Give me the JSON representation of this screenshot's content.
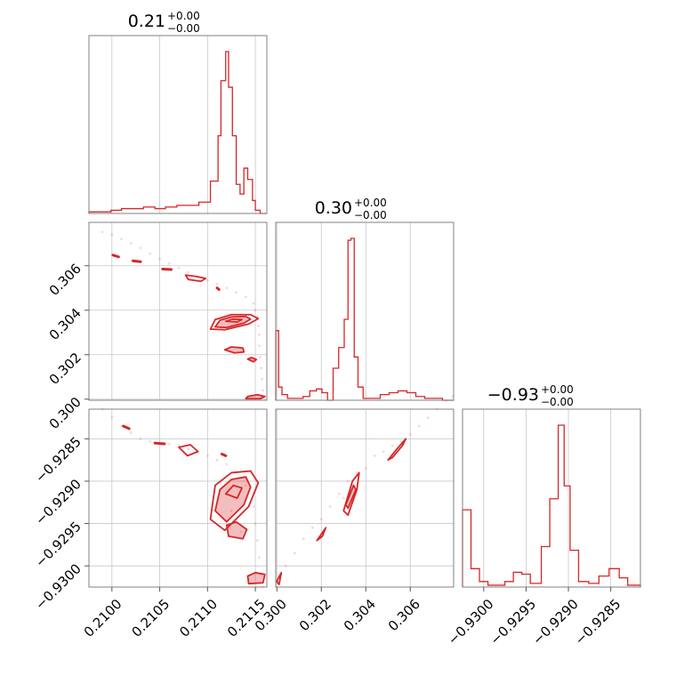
{
  "chart_data": {
    "type": "corner",
    "color": "#d62728",
    "grid": true,
    "parameters": [
      {
        "title": "0.21",
        "title_plus": "+0.00",
        "title_minus": "−0.00",
        "range": [
          0.20976,
          0.21162
        ],
        "ticks": [
          0.21,
          0.2105,
          0.211,
          0.2115
        ],
        "tick_labels": [
          "0.2100",
          "0.2105",
          "0.2110",
          "0.2115"
        ]
      },
      {
        "title": "0.30",
        "title_plus": "+0.00",
        "title_minus": "−0.00",
        "range": [
          0.29995,
          0.30795
        ],
        "ticks": [
          0.3,
          0.302,
          0.304,
          0.306
        ],
        "tick_labels": [
          "0.300",
          "0.302",
          "0.304",
          "0.306"
        ]
      },
      {
        "title": "−0.93",
        "title_plus": "+0.00",
        "title_minus": "−0.00",
        "range": [
          -0.93025,
          -0.92815
        ],
        "ticks": [
          -0.93,
          -0.9295,
          -0.929,
          -0.9285
        ],
        "tick_labels": [
          "−0.9300",
          "−0.9295",
          "−0.9290",
          "−0.9285"
        ]
      }
    ],
    "histograms": [
      {
        "param": 0,
        "edges": [
          0.20976,
          0.20987,
          0.20999,
          0.2101,
          0.21022,
          0.21033,
          0.21045,
          0.21056,
          0.21068,
          0.2108,
          0.21091,
          0.21103,
          0.21111,
          0.21114,
          0.21119,
          0.21122,
          0.21126,
          0.2113,
          0.21134,
          0.21138,
          0.21142,
          0.21147,
          0.2115,
          0.21155,
          0.21162
        ],
        "counts": [
          0.01,
          0.01,
          0.02,
          0.03,
          0.03,
          0.04,
          0.03,
          0.04,
          0.05,
          0.05,
          0.07,
          0.2,
          0.48,
          0.82,
          1.0,
          0.78,
          0.48,
          0.18,
          0.12,
          0.28,
          0.21,
          0.08,
          0.02,
          0.0
        ]
      },
      {
        "param": 1,
        "edges": [
          0.29995,
          0.30008,
          0.30023,
          0.30048,
          0.30088,
          0.30118,
          0.30148,
          0.30178,
          0.30203,
          0.30228,
          0.30253,
          0.30278,
          0.30303,
          0.3032,
          0.30333,
          0.30348,
          0.30365,
          0.30388,
          0.30425,
          0.30465,
          0.30505,
          0.30545,
          0.30585,
          0.30625,
          0.30665,
          0.30705,
          0.30745,
          0.30795
        ],
        "counts": [
          0.37,
          0.07,
          0.03,
          0.01,
          0.01,
          0.02,
          0.05,
          0.06,
          0.04,
          0.0,
          0.17,
          0.28,
          0.43,
          0.85,
          0.86,
          0.23,
          0.07,
          0.01,
          0.01,
          0.03,
          0.04,
          0.05,
          0.04,
          0.02,
          0.01,
          0.01,
          0.0
        ]
      },
      {
        "param": 2,
        "edges": [
          -0.93025,
          -0.93015,
          -0.93005,
          -0.92995,
          -0.92985,
          -0.92975,
          -0.92965,
          -0.92955,
          -0.92945,
          -0.92932,
          -0.92922,
          -0.92912,
          -0.92905,
          -0.92898,
          -0.92888,
          -0.92876,
          -0.92864,
          -0.92852,
          -0.9284,
          -0.9283,
          -0.92815
        ],
        "counts": [
          0.42,
          0.1,
          0.03,
          0.01,
          0.01,
          0.03,
          0.08,
          0.07,
          0.02,
          0.22,
          0.48,
          0.88,
          0.55,
          0.2,
          0.03,
          0.02,
          0.06,
          0.1,
          0.05,
          0.01
        ]
      }
    ],
    "points_note": "",
    "scatter": [
      {
        "x": 0,
        "y": 1,
        "points": [
          [
            0.2099,
            0.30752
          ],
          [
            0.21,
            0.3074
          ],
          [
            0.2101,
            0.3072
          ],
          [
            0.2102,
            0.307
          ],
          [
            0.2103,
            0.3068
          ],
          [
            0.2104,
            0.30655
          ],
          [
            0.2105,
            0.3063
          ],
          [
            0.2106,
            0.3061
          ],
          [
            0.2107,
            0.3059
          ],
          [
            0.2108,
            0.3057
          ],
          [
            0.2109,
            0.3055
          ],
          [
            0.211,
            0.30535
          ],
          [
            0.2111,
            0.30518
          ],
          [
            0.2112,
            0.305
          ],
          [
            0.2113,
            0.3048
          ],
          [
            0.2114,
            0.3046
          ],
          [
            0.21148,
            0.3043
          ],
          [
            0.2115,
            0.304
          ],
          [
            0.21152,
            0.3037
          ],
          [
            0.21153,
            0.3033
          ],
          [
            0.21154,
            0.3029
          ],
          [
            0.21154,
            0.3024
          ],
          [
            0.21155,
            0.3019
          ],
          [
            0.21156,
            0.3014
          ],
          [
            0.21157,
            0.3009
          ],
          [
            0.21158,
            0.3004
          ],
          [
            0.21125,
            0.3033
          ],
          [
            0.21135,
            0.3038
          ],
          [
            0.21115,
            0.3032
          ]
        ]
      },
      {
        "x": 0,
        "y": 2,
        "points": [
          [
            0.2099,
            -0.92815
          ],
          [
            0.21,
            -0.92825
          ],
          [
            0.2101,
            -0.92835
          ],
          [
            0.2102,
            -0.92843
          ],
          [
            0.2103,
            -0.9285
          ],
          [
            0.2104,
            -0.92853
          ],
          [
            0.2105,
            -0.92855
          ],
          [
            0.2106,
            -0.92856
          ],
          [
            0.2107,
            -0.92858
          ],
          [
            0.2108,
            -0.92862
          ],
          [
            0.2109,
            -0.92866
          ],
          [
            0.211,
            -0.9287
          ],
          [
            0.2111,
            -0.92875
          ],
          [
            0.2112,
            -0.9288
          ],
          [
            0.2113,
            -0.9289
          ],
          [
            0.2114,
            -0.92905
          ],
          [
            0.21148,
            -0.9293
          ],
          [
            0.2115,
            -0.9295
          ],
          [
            0.21152,
            -0.9297
          ],
          [
            0.21154,
            -0.9299
          ],
          [
            0.21156,
            -0.9301
          ],
          [
            0.21158,
            -0.93025
          ],
          [
            0.21125,
            -0.92935
          ],
          [
            0.21135,
            -0.9296
          ]
        ]
      },
      {
        "x": 1,
        "y": 2,
        "points": [
          [
            0.3,
            -0.9302
          ],
          [
            0.3004,
            -0.93
          ],
          [
            0.3008,
            -0.92985
          ],
          [
            0.3012,
            -0.92968
          ],
          [
            0.3016,
            -0.92955
          ],
          [
            0.302,
            -0.92945
          ],
          [
            0.3024,
            -0.9293
          ],
          [
            0.3028,
            -0.92915
          ],
          [
            0.3032,
            -0.929
          ],
          [
            0.3036,
            -0.9289
          ],
          [
            0.304,
            -0.92885
          ],
          [
            0.3044,
            -0.9287
          ],
          [
            0.3048,
            -0.92865
          ],
          [
            0.3052,
            -0.92858
          ],
          [
            0.3056,
            -0.92853
          ],
          [
            0.306,
            -0.92845
          ],
          [
            0.3064,
            -0.92835
          ],
          [
            0.3068,
            -0.92825
          ],
          [
            0.3072,
            -0.92815
          ],
          [
            0.3076,
            -0.92805
          ],
          [
            0.3079,
            -0.928
          ],
          [
            0.303,
            -0.9292
          ],
          [
            0.3034,
            -0.92905
          ]
        ]
      }
    ],
    "contours": [
      {
        "x": 0,
        "y": 1,
        "filled": true,
        "points": [
          [
            0.21108,
            0.30325
          ],
          [
            0.21113,
            0.30355
          ],
          [
            0.21125,
            0.3037
          ],
          [
            0.2114,
            0.30372
          ],
          [
            0.21145,
            0.3036
          ],
          [
            0.21138,
            0.30342
          ],
          [
            0.2112,
            0.30322
          ]
        ]
      },
      {
        "x": 0,
        "y": 1,
        "filled": false,
        "points": [
          [
            0.21103,
            0.30315
          ],
          [
            0.21108,
            0.30358
          ],
          [
            0.21125,
            0.3038
          ],
          [
            0.21145,
            0.3038
          ],
          [
            0.21153,
            0.30362
          ],
          [
            0.21143,
            0.30338
          ],
          [
            0.21118,
            0.30312
          ]
        ]
      },
      {
        "x": 0,
        "y": 1,
        "filled": false,
        "points": [
          [
            0.21119,
            0.3035
          ],
          [
            0.21127,
            0.3036
          ],
          [
            0.21136,
            0.30358
          ],
          [
            0.21131,
            0.30347
          ]
        ]
      },
      {
        "x": 0,
        "y": 1,
        "filled": true,
        "points": [
          [
            0.21118,
            0.30222
          ],
          [
            0.21125,
            0.30235
          ],
          [
            0.21137,
            0.3023
          ],
          [
            0.21138,
            0.30212
          ],
          [
            0.21128,
            0.30208
          ]
        ]
      },
      {
        "x": 0,
        "y": 1,
        "filled": true,
        "points": [
          [
            0.21142,
            0.3018
          ],
          [
            0.21146,
            0.30187
          ],
          [
            0.21151,
            0.30178
          ],
          [
            0.21148,
            0.30168
          ]
        ]
      },
      {
        "x": 0,
        "y": 1,
        "filled": false,
        "points": [
          [
            0.2111,
            0.305
          ],
          [
            0.21112,
            0.30493
          ]
        ]
      },
      {
        "x": 0,
        "y": 1,
        "filled": false,
        "points": [
          [
            0.21077,
            0.30558
          ],
          [
            0.21088,
            0.30552
          ],
          [
            0.21098,
            0.30543
          ],
          [
            0.21093,
            0.3053
          ],
          [
            0.2108,
            0.30538
          ]
        ]
      },
      {
        "x": 0,
        "y": 1,
        "filled": true,
        "points": [
          [
            0.21053,
            0.30585
          ],
          [
            0.21062,
            0.30583
          ]
        ]
      },
      {
        "x": 0,
        "y": 1,
        "filled": true,
        "points": [
          [
            0.21022,
            0.30622
          ],
          [
            0.2103,
            0.30618
          ]
        ]
      },
      {
        "x": 0,
        "y": 1,
        "filled": true,
        "points": [
          [
            0.21001,
            0.30648
          ],
          [
            0.21007,
            0.3064
          ]
        ]
      },
      {
        "x": 0,
        "y": 1,
        "filled": true,
        "points": [
          [
            0.21142,
            0.30012
          ],
          [
            0.21152,
            0.3002
          ],
          [
            0.2116,
            0.30012
          ],
          [
            0.21155,
            0.30002
          ],
          [
            0.2114,
            0.30002
          ]
        ]
      },
      {
        "x": 0,
        "y": 2,
        "filled": true,
        "points": [
          [
            0.21108,
            -0.92935
          ],
          [
            0.21113,
            -0.9291
          ],
          [
            0.21125,
            -0.92898
          ],
          [
            0.2114,
            -0.92895
          ],
          [
            0.21145,
            -0.92907
          ],
          [
            0.21138,
            -0.92928
          ],
          [
            0.2112,
            -0.92948
          ]
        ]
      },
      {
        "x": 0,
        "y": 2,
        "filled": false,
        "points": [
          [
            0.21103,
            -0.92945
          ],
          [
            0.21108,
            -0.92905
          ],
          [
            0.21125,
            -0.9289
          ],
          [
            0.21145,
            -0.92888
          ],
          [
            0.21153,
            -0.92902
          ],
          [
            0.21143,
            -0.9293
          ],
          [
            0.21118,
            -0.92958
          ]
        ]
      },
      {
        "x": 0,
        "y": 2,
        "filled": false,
        "points": [
          [
            0.21119,
            -0.92915
          ],
          [
            0.21127,
            -0.92905
          ],
          [
            0.21136,
            -0.92908
          ],
          [
            0.21131,
            -0.9292
          ]
        ]
      },
      {
        "x": 0,
        "y": 2,
        "filled": true,
        "points": [
          [
            0.2112,
            -0.92952
          ],
          [
            0.2113,
            -0.92948
          ],
          [
            0.21141,
            -0.92957
          ],
          [
            0.21137,
            -0.92968
          ],
          [
            0.21122,
            -0.92965
          ]
        ]
      },
      {
        "x": 0,
        "y": 2,
        "filled": false,
        "points": [
          [
            0.2107,
            -0.9286
          ],
          [
            0.21082,
            -0.92857
          ],
          [
            0.2109,
            -0.92865
          ],
          [
            0.21079,
            -0.9287
          ]
        ]
      },
      {
        "x": 0,
        "y": 2,
        "filled": true,
        "points": [
          [
            0.21045,
            -0.92855
          ],
          [
            0.21055,
            -0.92856
          ]
        ]
      },
      {
        "x": 0,
        "y": 2,
        "filled": true,
        "points": [
          [
            0.21012,
            -0.92835
          ],
          [
            0.21018,
            -0.92838
          ]
        ]
      },
      {
        "x": 0,
        "y": 2,
        "filled": true,
        "points": [
          [
            0.21115,
            -0.92868
          ],
          [
            0.21119,
            -0.9287
          ]
        ]
      },
      {
        "x": 0,
        "y": 2,
        "filled": true,
        "points": [
          [
            0.21142,
            -0.93012
          ],
          [
            0.2115,
            -0.93008
          ],
          [
            0.2116,
            -0.9301
          ],
          [
            0.21158,
            -0.9302
          ],
          [
            0.21143,
            -0.93021
          ]
        ]
      },
      {
        "x": 1,
        "y": 2,
        "filled": false,
        "points": [
          [
            0.303,
            -0.92935
          ],
          [
            0.3034,
            -0.929
          ],
          [
            0.3037,
            -0.9289
          ],
          [
            0.3036,
            -0.9291
          ],
          [
            0.3032,
            -0.9294
          ]
        ]
      },
      {
        "x": 1,
        "y": 2,
        "filled": true,
        "points": [
          [
            0.3031,
            -0.92928
          ],
          [
            0.30345,
            -0.92905
          ],
          [
            0.30355,
            -0.9291
          ],
          [
            0.3032,
            -0.92932
          ]
        ]
      },
      {
        "x": 1,
        "y": 2,
        "filled": false,
        "points": [
          [
            0.3018,
            -0.9297
          ],
          [
            0.3022,
            -0.92955
          ],
          [
            0.30205,
            -0.92965
          ]
        ]
      },
      {
        "x": 1,
        "y": 2,
        "filled": false,
        "points": [
          [
            0.305,
            -0.92875
          ],
          [
            0.3054,
            -0.92862
          ],
          [
            0.3058,
            -0.9285
          ],
          [
            0.30565,
            -0.92858
          ],
          [
            0.3052,
            -0.92872
          ]
        ]
      },
      {
        "x": 1,
        "y": 2,
        "filled": false,
        "points": [
          [
            0.3,
            -0.93018
          ],
          [
            0.3002,
            -0.93008
          ],
          [
            0.3001,
            -0.93022
          ]
        ]
      }
    ]
  }
}
